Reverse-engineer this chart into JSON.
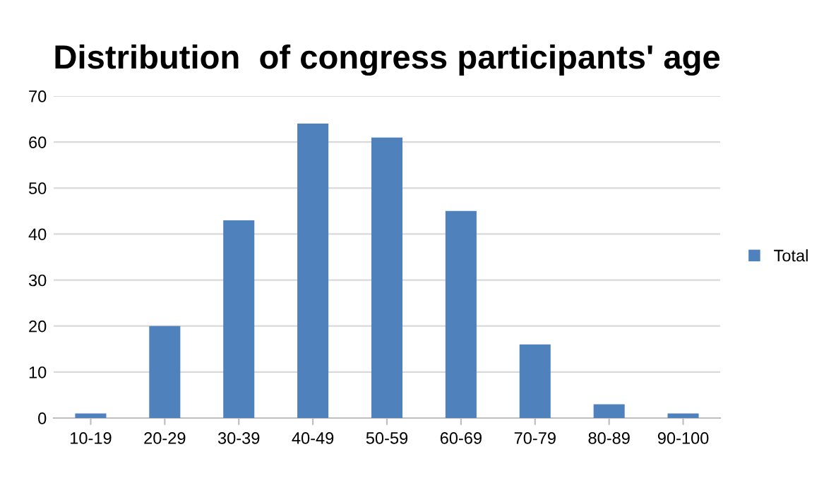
{
  "chart_data": {
    "type": "bar",
    "title": "Distribution  of congress participants' age",
    "categories": [
      "10-19",
      "20-29",
      "30-39",
      "40-49",
      "50-59",
      "60-69",
      "70-79",
      "80-89",
      "90-100"
    ],
    "series": [
      {
        "name": "Total",
        "color": "#4f81bd",
        "values": [
          1,
          20,
          43,
          64,
          61,
          45,
          16,
          3,
          1
        ]
      }
    ],
    "ylim": [
      0,
      70
    ],
    "yticks": [
      0,
      10,
      20,
      30,
      40,
      50,
      60,
      70
    ],
    "grid": "y",
    "legend": "right"
  }
}
